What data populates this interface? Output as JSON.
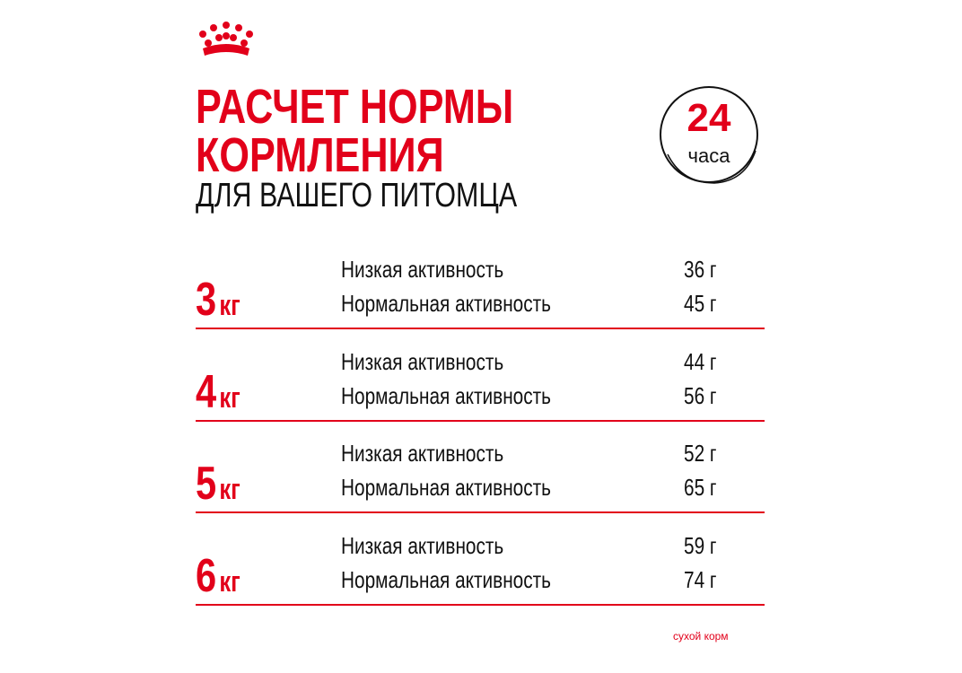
{
  "header": {
    "title_lines": [
      "РАСЧЕТ НОРМЫ",
      "КОРМЛЕНИЯ"
    ],
    "subtitle": "ДЛЯ ВАШЕГО ПИТОМЦА"
  },
  "badge": {
    "number": "24",
    "unit": "часа"
  },
  "table": {
    "rows": [
      {
        "weight": "3",
        "unit": "кг",
        "entries": [
          {
            "label": "Низкая активность",
            "amount": "36 г"
          },
          {
            "label": "Нормальная активность",
            "amount": "45 г"
          }
        ]
      },
      {
        "weight": "4",
        "unit": "кг",
        "entries": [
          {
            "label": "Низкая активность",
            "amount": "44 г"
          },
          {
            "label": "Нормальная активность",
            "amount": "56 г"
          }
        ]
      },
      {
        "weight": "5",
        "unit": "кг",
        "entries": [
          {
            "label": "Низкая активность",
            "amount": "52 г"
          },
          {
            "label": "Нормальная активность",
            "amount": "65 г"
          }
        ]
      },
      {
        "weight": "6",
        "unit": "кг",
        "entries": [
          {
            "label": "Низкая активность",
            "amount": "59 г"
          },
          {
            "label": "Нормальная активность",
            "amount": "74 г"
          }
        ]
      }
    ]
  },
  "footer": {
    "note": "сухой корм"
  }
}
